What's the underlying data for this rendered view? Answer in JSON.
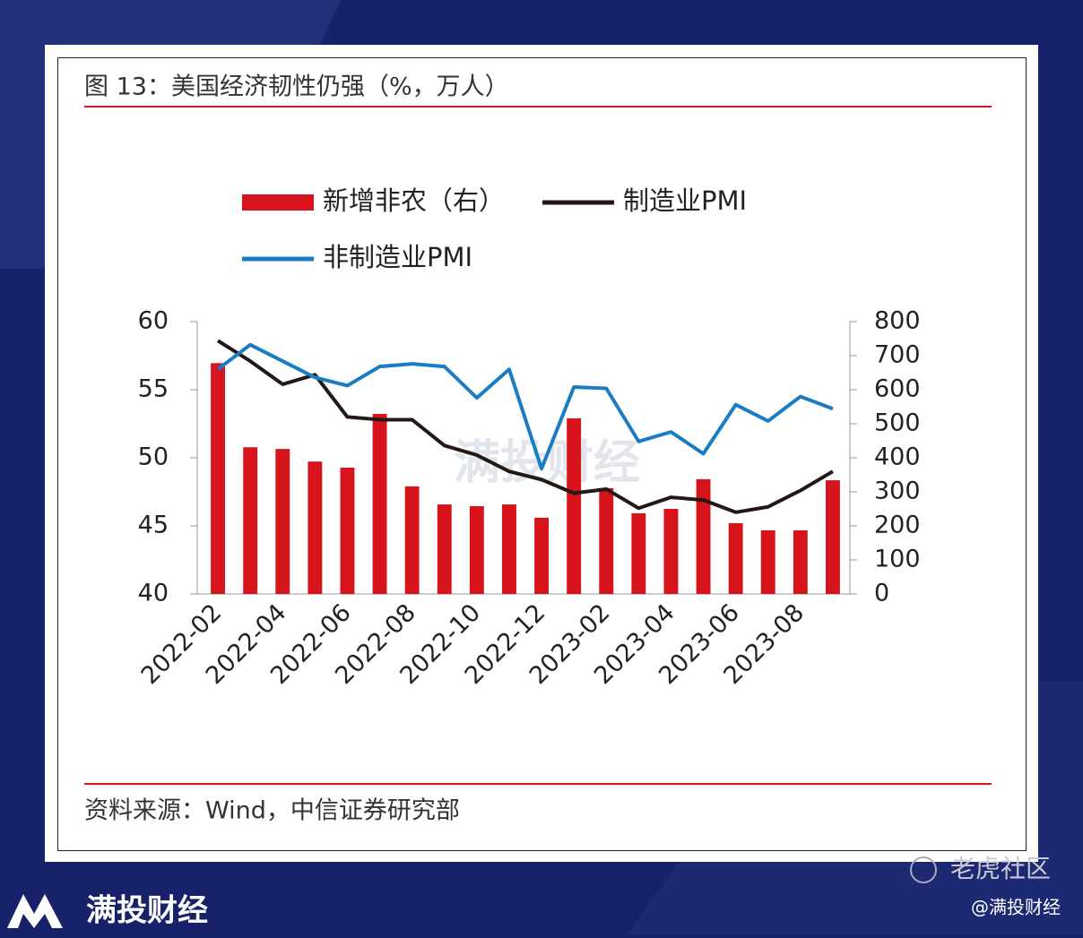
{
  "chart_data": {
    "type": "combo",
    "title": "图 13：美国经济韧性仍强（%，万人）",
    "categories": [
      "2022-02",
      null,
      "2022-04",
      null,
      "2022-06",
      null,
      "2022-08",
      null,
      "2022-10",
      null,
      "2022-12",
      null,
      "2023-02",
      null,
      "2023-04",
      null,
      "2023-06",
      null,
      "2023-08",
      null
    ],
    "series": [
      {
        "name": "新增非农（右）",
        "type": "bar",
        "axis": "y2",
        "color": "#d7141c",
        "values": [
          678,
          431,
          426,
          389,
          371,
          529,
          316,
          263,
          258,
          263,
          224,
          516,
          311,
          237,
          250,
          337,
          208,
          187,
          187,
          334
        ]
      },
      {
        "name": "制造业PMI",
        "type": "line",
        "color": "#231815",
        "values": [
          58.6,
          57.1,
          55.4,
          56.1,
          53.0,
          52.8,
          52.8,
          50.9,
          50.2,
          49.0,
          48.4,
          47.4,
          47.7,
          46.3,
          47.1,
          46.9,
          46.0,
          46.4,
          47.6,
          49.0
        ]
      },
      {
        "name": "非制造业PMI",
        "type": "line",
        "color": "#1a7dc4",
        "values": [
          56.5,
          58.3,
          57.1,
          55.9,
          55.3,
          56.7,
          56.9,
          56.7,
          54.4,
          56.5,
          49.2,
          55.2,
          55.1,
          51.2,
          51.9,
          50.3,
          53.9,
          52.7,
          54.5,
          53.6
        ]
      }
    ],
    "ylim": [
      40,
      60
    ],
    "yticks": [
      40,
      45,
      50,
      55,
      60
    ],
    "y2lim": [
      0,
      800
    ],
    "y2ticks": [
      0,
      100,
      200,
      300,
      400,
      500,
      600,
      700,
      800
    ],
    "grid": false
  },
  "source": "资料来源：Wind，中信证券研究部",
  "watermark": "满投财经",
  "brand": "满投财经",
  "community": "老虎社区",
  "handle": "@满投财经"
}
